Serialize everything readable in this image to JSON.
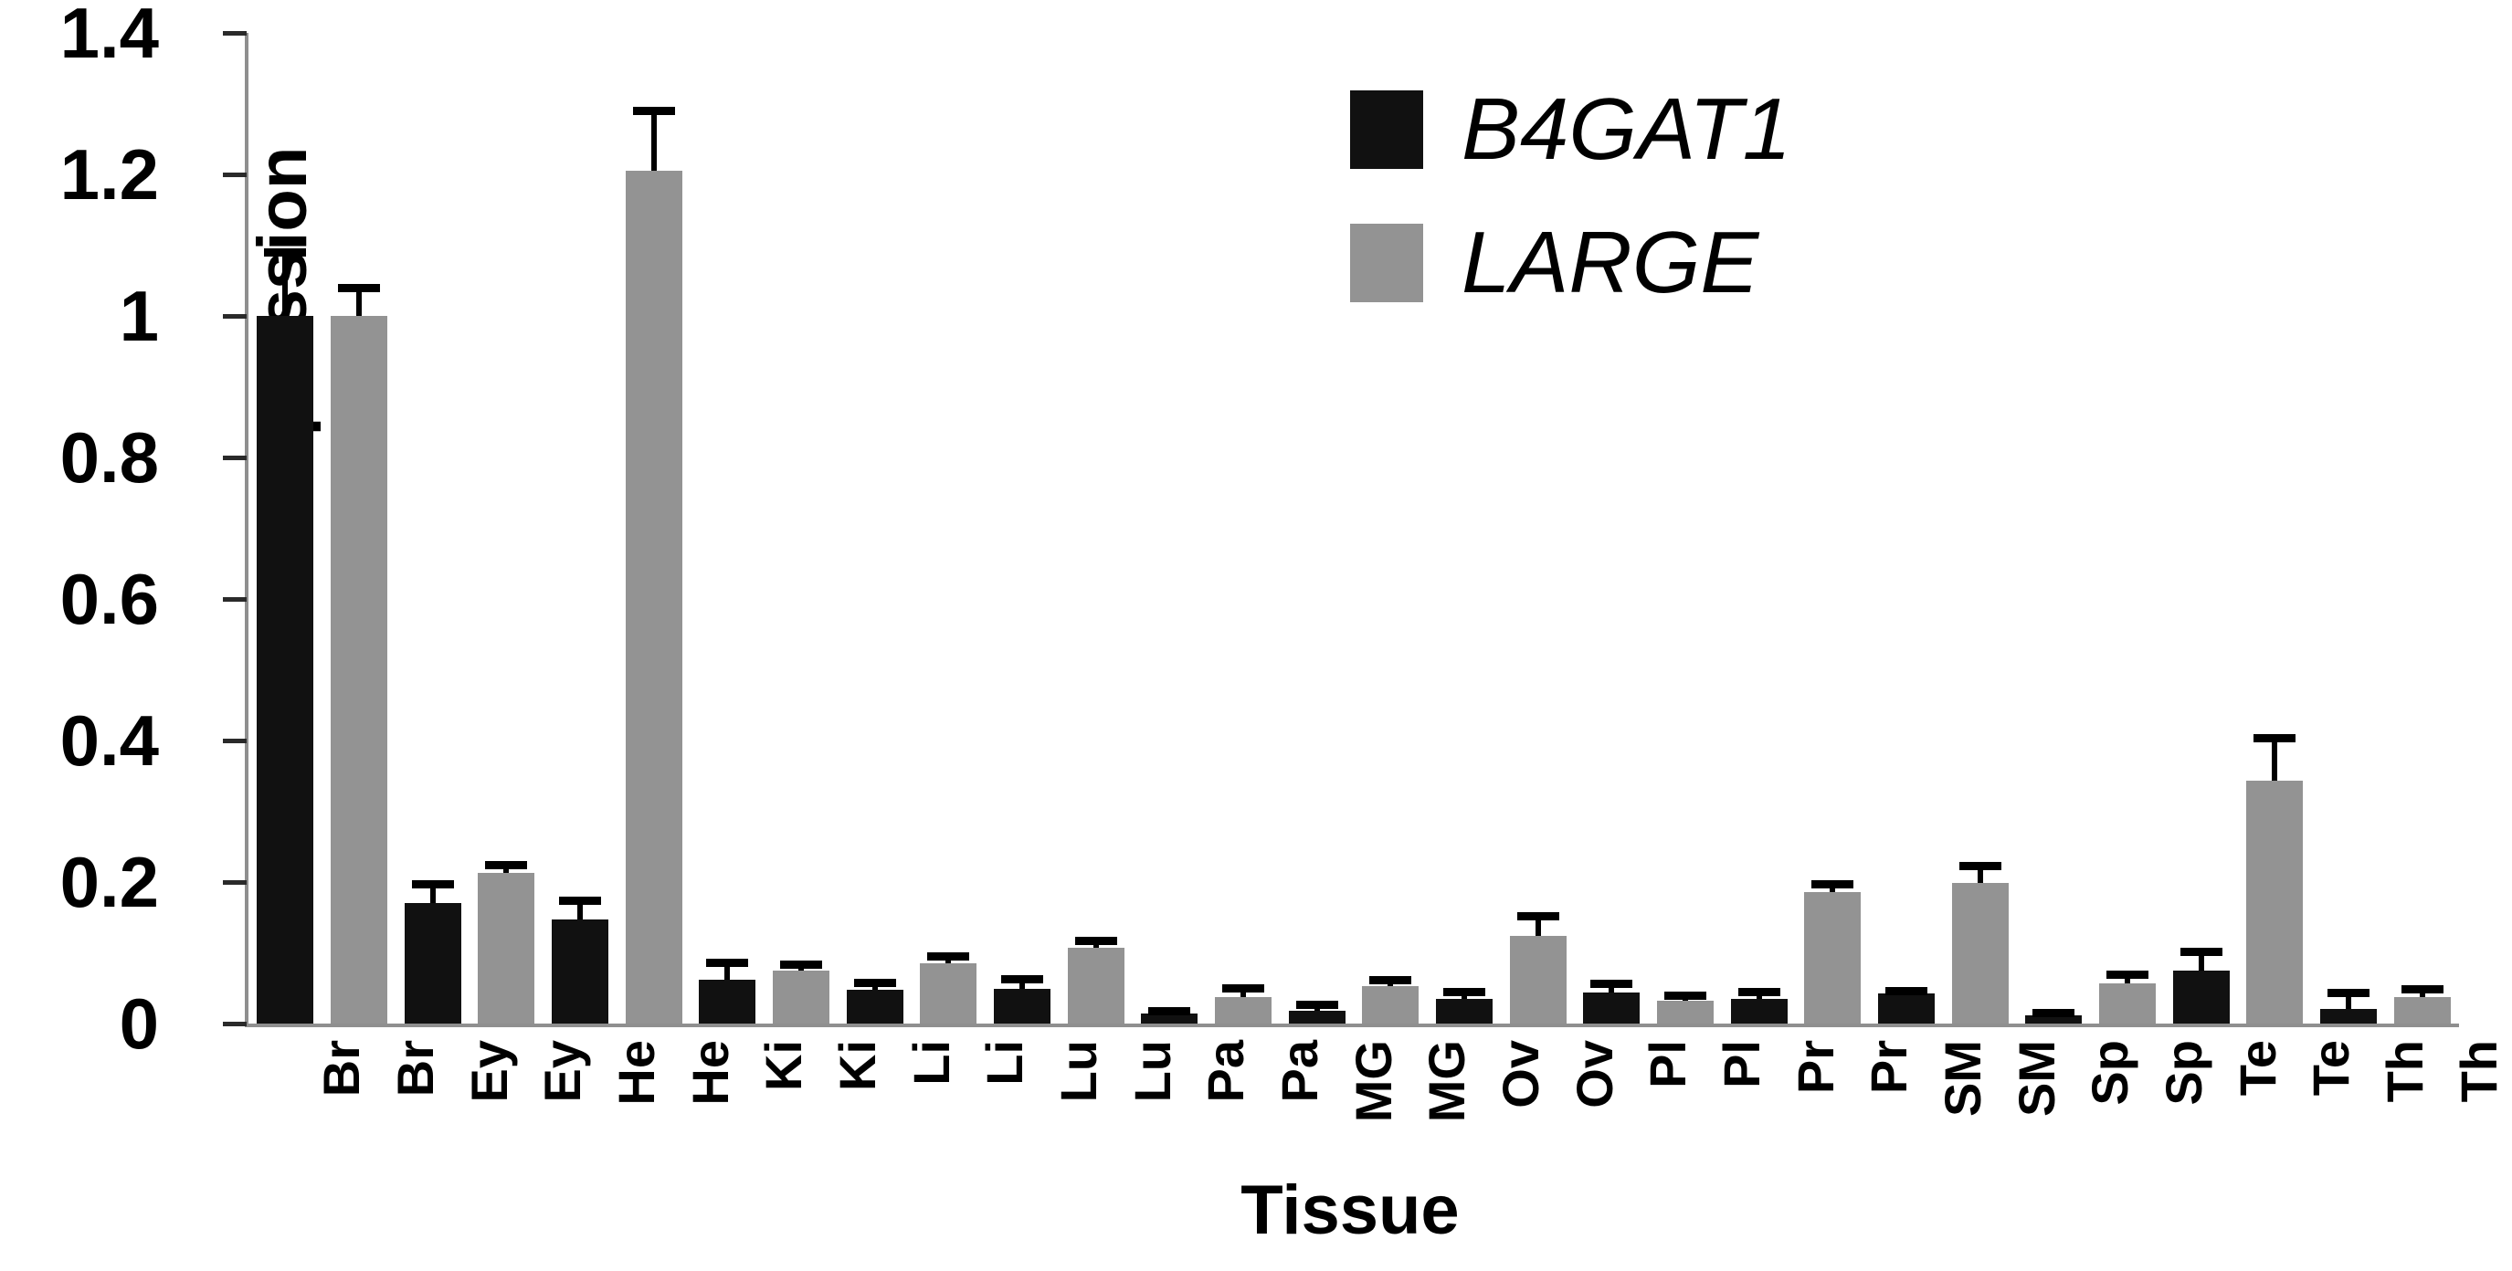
{
  "chart_data": {
    "type": "bar",
    "title": "",
    "xlabel": "Tissue",
    "ylabel": "Gene expression",
    "categories": [
      "Br",
      "Ey",
      "He",
      "Ki",
      "Li",
      "Lu",
      "Pa",
      "MG",
      "Ov",
      "Pl",
      "Pr",
      "SM",
      "Sp",
      "Te",
      "Th"
    ],
    "bar_arrangement": "pairs per tissue, B4GAT1 bar then LARGE bar, each bar labeled with the tissue abbreviation",
    "series": [
      {
        "name": "B4GAT1",
        "color": "#111111",
        "values": [
          1.0,
          0.17,
          0.147,
          0.062,
          0.048,
          0.049,
          0.014,
          0.018,
          0.035,
          0.044,
          0.035,
          0.042,
          0.012,
          0.075,
          0.021
        ],
        "errors_upper": [
          0.09,
          0.028,
          0.027,
          0.024,
          0.01,
          0.014,
          0.004,
          0.009,
          0.01,
          0.013,
          0.01,
          0.004,
          0.003,
          0.027,
          0.023
        ]
      },
      {
        "name": "LARGE",
        "color": "#939393",
        "values": [
          1.0,
          0.213,
          1.205,
          0.075,
          0.085,
          0.107,
          0.037,
          0.053,
          0.124,
          0.032,
          0.186,
          0.199,
          0.057,
          0.343,
          0.037
        ],
        "errors_upper": [
          0.04,
          0.011,
          0.085,
          0.009,
          0.01,
          0.01,
          0.013,
          0.009,
          0.028,
          0.008,
          0.012,
          0.024,
          0.013,
          0.061,
          0.012
        ]
      }
    ],
    "ylim": [
      0,
      1.4
    ],
    "y_ticks": [
      0,
      0.2,
      0.4,
      0.6,
      0.8,
      1,
      1.2,
      1.4
    ],
    "y_tick_labels": [
      "0",
      "0.2",
      "0.4",
      "0.6",
      "0.8",
      "1",
      "1.2",
      "1.4"
    ],
    "grid": false,
    "error_bars": "upper only, with caps",
    "legend_position": "upper right inside plot"
  },
  "legend": {
    "items": [
      {
        "label": "B4GAT1",
        "color": "#111111"
      },
      {
        "label": "LARGE",
        "color": "#939393"
      }
    ]
  },
  "axes": {
    "x_title": "Tissue",
    "y_title": "Gene expression"
  }
}
